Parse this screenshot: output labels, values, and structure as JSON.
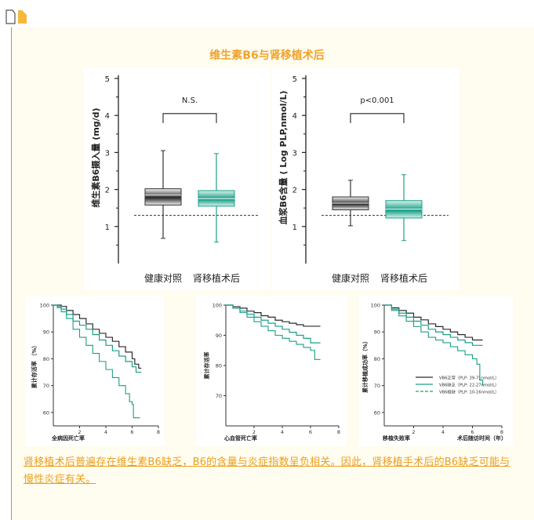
{
  "title": "维生素B6与肾移植术后",
  "caption": "肾移植术后普遍存在维生素B6缺乏，B6的含量与炎症指数呈负相关。因此，肾移植手术后的B6缺乏可能与慢性炎症有关。",
  "colors": {
    "title": "#f0a32c",
    "caption": "#e9a020",
    "teal": "#1a9f86",
    "dark": "#333333",
    "rule": "#b79b4a"
  },
  "chart_data": [
    {
      "type": "box",
      "ylabel": "维生素B6摄入量 (mg/d)",
      "ylim": [
        0,
        5
      ],
      "yticks": [
        "1",
        "2",
        "3",
        "4",
        "5"
      ],
      "categories": [
        "健康对照",
        "肾移植术后"
      ],
      "significance": "N.S.",
      "reference_line": 1.3,
      "boxes": [
        {
          "min": 0.68,
          "q1": 1.58,
          "median": 1.85,
          "q3": 2.02,
          "max": 3.05
        },
        {
          "min": 0.58,
          "q1": 1.55,
          "median": 1.75,
          "q3": 1.97,
          "max": 2.97
        }
      ]
    },
    {
      "type": "box",
      "ylabel": "血浆B6含量 ( Log PLP,nmol/L)",
      "ylim": [
        0,
        5
      ],
      "yticks": [
        "1",
        "2",
        "3",
        "4",
        "5"
      ],
      "categories": [
        "健康对照",
        "肾移植术后"
      ],
      "significance": "p<0.001",
      "reference_line": 1.3,
      "boxes": [
        {
          "min": 1.02,
          "q1": 1.45,
          "median": 1.63,
          "q3": 1.8,
          "max": 2.25
        },
        {
          "min": 0.62,
          "q1": 1.23,
          "median": 1.47,
          "q3": 1.7,
          "max": 2.4
        }
      ]
    },
    {
      "type": "line",
      "xlabel": "全病因死亡率",
      "ylabel": "累计存活率 （%）",
      "xlim": [
        0,
        8
      ],
      "ylim": [
        55,
        100
      ],
      "xticks": [
        "2",
        "4",
        "6",
        "8"
      ],
      "yticks": [
        "100",
        "90",
        "80",
        "70",
        "60"
      ],
      "series": [
        {
          "x": [
            0,
            0.3,
            0.6,
            1,
            1.5,
            2,
            2.5,
            3,
            3.5,
            4,
            4.5,
            5,
            5.5,
            6,
            6.2,
            6.5,
            6.7
          ],
          "y": [
            100,
            100,
            99.5,
            98,
            96.5,
            95,
            93,
            91,
            89.5,
            88,
            86.5,
            84.5,
            82.5,
            80,
            78,
            76.5,
            76.5
          ]
        },
        {
          "x": [
            0,
            0.3,
            0.6,
            1,
            1.5,
            2,
            2.5,
            3,
            3.5,
            4,
            4.5,
            5,
            5.5,
            6,
            6.3,
            6.5,
            6.7
          ],
          "y": [
            100,
            99.5,
            98.5,
            96.5,
            94,
            92.5,
            91,
            89,
            87,
            85,
            83,
            81,
            79,
            77,
            75,
            75,
            75
          ]
        },
        {
          "x": [
            0,
            0.3,
            0.6,
            1,
            1.5,
            2,
            2.5,
            3,
            3.5,
            4,
            4.5,
            5,
            5.5,
            5.8,
            6,
            6.1,
            6.3,
            6.6
          ],
          "y": [
            100,
            99,
            97.5,
            95,
            91,
            88,
            85,
            82,
            79,
            76,
            73,
            70,
            67,
            64,
            63,
            58,
            58,
            58
          ]
        }
      ]
    },
    {
      "type": "line",
      "xlabel": "心血管死亡率",
      "ylabel": "累计存活率",
      "xlim": [
        0,
        8
      ],
      "ylim": [
        60,
        100
      ],
      "xticks": [
        "2",
        "4",
        "6",
        "8"
      ],
      "yticks": [
        "100",
        "90",
        "80",
        "70"
      ],
      "series": [
        {
          "x": [
            0,
            0.5,
            1,
            1.5,
            2,
            2.5,
            3,
            3.5,
            4,
            4.5,
            5,
            5.5,
            6,
            6.7
          ],
          "y": [
            100,
            99.5,
            99,
            98,
            97.5,
            96.5,
            96,
            95,
            94.5,
            94,
            93.5,
            93,
            93,
            93
          ]
        },
        {
          "x": [
            0,
            0.5,
            1,
            1.5,
            2,
            2.5,
            3,
            3.5,
            4,
            4.5,
            5,
            5.5,
            6,
            6.7
          ],
          "y": [
            100,
            99,
            98,
            97,
            96,
            95,
            94,
            93,
            92,
            91,
            90,
            89,
            87.5,
            87.5
          ]
        },
        {
          "x": [
            0,
            0.5,
            1,
            1.5,
            2,
            2.5,
            3,
            3.5,
            4,
            4.5,
            5,
            5.5,
            6,
            6.3,
            6.7
          ],
          "y": [
            100,
            99,
            97.5,
            96,
            94.5,
            93,
            91.5,
            90,
            89,
            88,
            87,
            86,
            85,
            82,
            82
          ]
        }
      ]
    },
    {
      "type": "line",
      "xlabel": "移植失败率",
      "xlabel_right": "术后随访时间（年）",
      "ylabel": "累计移植成功率（%）",
      "xlim": [
        0,
        8
      ],
      "ylim": [
        55,
        100
      ],
      "xticks": [
        "2",
        "4",
        "6",
        "8"
      ],
      "yticks": [
        "100",
        "90",
        "80",
        "70",
        "60"
      ],
      "legend": [
        "VB6正常（PLP: 39-71nmol/L）",
        "VB6缺乏（PLP: 22-27nmol/L）",
        "VB6极缺（PLP: 10-16nmol/L）"
      ],
      "series": [
        {
          "name": "VB6正常（PLP: 39-71nmol/L）",
          "x": [
            0,
            0.5,
            1,
            1.5,
            2,
            2.5,
            3,
            3.5,
            4,
            4.5,
            5,
            5.5,
            6,
            6.7
          ],
          "y": [
            100,
            99,
            98,
            97,
            95.5,
            94.5,
            93,
            92,
            91,
            90,
            89,
            88,
            87,
            87
          ]
        },
        {
          "name": "VB6缺乏（PLP: 22-27nmol/L）",
          "x": [
            0,
            0.5,
            1,
            1.5,
            2,
            2.5,
            3,
            3.5,
            4,
            4.5,
            5,
            5.5,
            6,
            6.7
          ],
          "y": [
            100,
            98.5,
            97,
            95.5,
            94,
            92.5,
            91,
            90,
            89,
            88,
            87,
            86,
            85,
            85
          ]
        },
        {
          "name": "VB6极缺（PLP: 10-16nmol/L）",
          "x": [
            0,
            0.5,
            1,
            1.5,
            2,
            2.5,
            3,
            3.5,
            4,
            4.5,
            5,
            5.5,
            6,
            6.3,
            6.5,
            6.7
          ],
          "y": [
            100,
            98,
            96,
            94,
            92,
            90,
            88,
            87,
            86,
            84.5,
            83,
            81.5,
            80,
            78,
            72,
            70
          ]
        }
      ]
    }
  ]
}
